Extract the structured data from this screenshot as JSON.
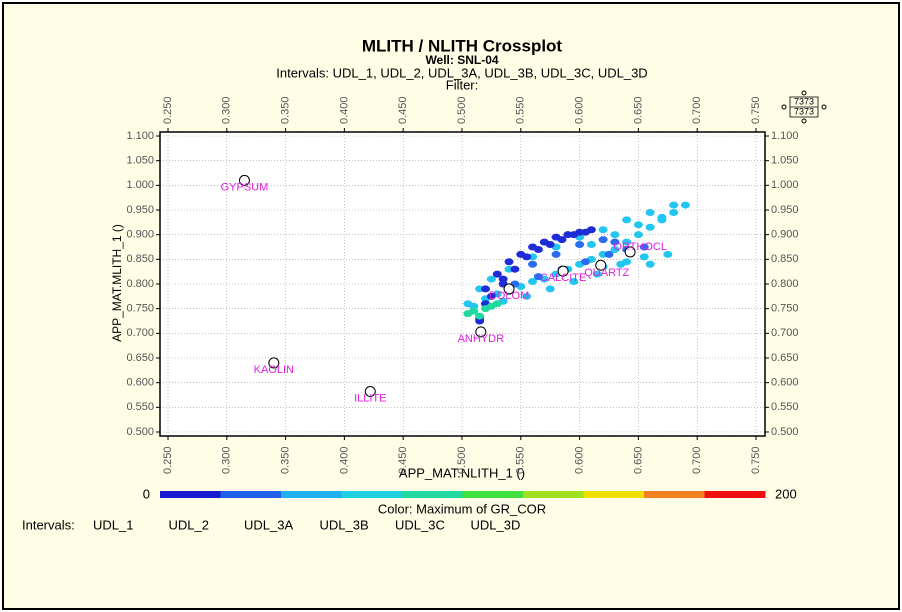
{
  "chart_data": {
    "type": "scatter",
    "title": "MLITH / NLITH Crossplot",
    "subtitle": "Well: SNL-04",
    "intervals_line": "Intervals: UDL_1, UDL_2, UDL_3A, UDL_3B, UDL_3C, UDL_3D",
    "filter": "Filter:",
    "xlabel": "APP_MAT.NLITH_1 ()",
    "ylabel": "APP_MAT.MLITH_1 ()",
    "xlim": [
      0.25,
      0.75
    ],
    "ylim": [
      0.5,
      1.1
    ],
    "xticks": [
      {
        "value": 0.25,
        "label": "0.250"
      },
      {
        "value": 0.3,
        "label": "0.300"
      },
      {
        "value": 0.35,
        "label": "0.350"
      },
      {
        "value": 0.4,
        "label": "0.400"
      },
      {
        "value": 0.45,
        "label": "0.450"
      },
      {
        "value": 0.5,
        "label": "0.500"
      },
      {
        "value": 0.55,
        "label": "0.550"
      },
      {
        "value": 0.6,
        "label": "0.600"
      },
      {
        "value": 0.65,
        "label": "0.650"
      },
      {
        "value": 0.7,
        "label": "0.700"
      },
      {
        "value": 0.75,
        "label": "0.750"
      }
    ],
    "yticks": [
      {
        "value": 0.5,
        "label": "0.500"
      },
      {
        "value": 0.55,
        "label": "0.550"
      },
      {
        "value": 0.6,
        "label": "0.600"
      },
      {
        "value": 0.65,
        "label": "0.650"
      },
      {
        "value": 0.7,
        "label": "0.700"
      },
      {
        "value": 0.75,
        "label": "0.750"
      },
      {
        "value": 0.8,
        "label": "0.800"
      },
      {
        "value": 0.85,
        "label": "0.850"
      },
      {
        "value": 0.9,
        "label": "0.900"
      },
      {
        "value": 0.95,
        "label": "0.950"
      },
      {
        "value": 1.0,
        "label": "1.000"
      },
      {
        "value": 1.05,
        "label": "1.050"
      },
      {
        "value": 1.1,
        "label": "1.100"
      }
    ],
    "grid": true,
    "series": [
      {
        "color": "#22c6f0",
        "x": [
          0.505,
          0.51,
          0.52,
          0.53,
          0.54,
          0.55,
          0.56,
          0.57,
          0.58,
          0.59,
          0.6,
          0.61,
          0.62,
          0.63,
          0.64,
          0.65,
          0.66,
          0.67,
          0.68,
          0.69,
          0.61,
          0.63,
          0.65,
          0.67,
          0.68,
          0.66,
          0.64,
          0.62,
          0.6,
          0.58,
          0.56,
          0.54,
          0.525,
          0.515,
          0.535,
          0.555,
          0.575,
          0.595,
          0.615,
          0.635,
          0.655,
          0.675,
          0.62,
          0.64,
          0.66
        ],
        "values": [
          0.76,
          0.755,
          0.77,
          0.78,
          0.785,
          0.795,
          0.805,
          0.81,
          0.82,
          0.83,
          0.84,
          0.85,
          0.86,
          0.87,
          0.885,
          0.9,
          0.915,
          0.93,
          0.945,
          0.96,
          0.88,
          0.9,
          0.92,
          0.935,
          0.96,
          0.945,
          0.93,
          0.91,
          0.895,
          0.875,
          0.855,
          0.83,
          0.81,
          0.79,
          0.765,
          0.775,
          0.79,
          0.805,
          0.82,
          0.84,
          0.855,
          0.86,
          0.835,
          0.845,
          0.84
        ]
      },
      {
        "color": "#2a6cf0",
        "x": [
          0.545,
          0.565,
          0.585,
          0.605,
          0.625,
          0.64,
          0.655,
          0.6,
          0.62,
          0.63,
          0.58,
          0.56
        ],
        "values": [
          0.8,
          0.815,
          0.83,
          0.845,
          0.86,
          0.87,
          0.875,
          0.88,
          0.89,
          0.885,
          0.86,
          0.84
        ]
      },
      {
        "color": "#1e2bd6",
        "x": [
          0.525,
          0.535,
          0.545,
          0.555,
          0.565,
          0.575,
          0.585,
          0.595,
          0.605,
          0.61,
          0.52,
          0.515,
          0.53,
          0.54,
          0.55,
          0.56,
          0.57,
          0.58,
          0.59,
          0.6,
          0.515,
          0.52,
          0.535
        ],
        "values": [
          0.775,
          0.8,
          0.83,
          0.855,
          0.87,
          0.88,
          0.89,
          0.9,
          0.905,
          0.91,
          0.79,
          0.725,
          0.82,
          0.845,
          0.86,
          0.875,
          0.885,
          0.895,
          0.9,
          0.905,
          0.73,
          0.76,
          0.81
        ]
      },
      {
        "color": "#20d8a0",
        "x": [
          0.505,
          0.51,
          0.52,
          0.53,
          0.515,
          0.525
        ],
        "values": [
          0.74,
          0.745,
          0.75,
          0.76,
          0.735,
          0.755
        ]
      }
    ],
    "minerals": {
      "color": "#e020e0",
      "labels": [
        "GYPSUM",
        "KAOLIN",
        "ILLITE",
        "ANHYDR",
        "DOLOM",
        "CALCITE",
        "QUARTZ",
        "ORTHOCL"
      ],
      "x": [
        0.315,
        0.34,
        0.422,
        0.516,
        0.54,
        0.586,
        0.618,
        0.643
      ],
      "values": [
        1.01,
        0.64,
        0.582,
        0.703,
        0.79,
        0.826,
        0.838,
        0.865
      ]
    },
    "colorbar": {
      "min": 0,
      "max": 200,
      "label": "Color: Maximum of GR_COR",
      "colors": [
        "#1a1ad0",
        "#2060e8",
        "#20b0f0",
        "#20d0e0",
        "#20d8a0",
        "#40e040",
        "#a0e020",
        "#f0e000",
        "#f08020",
        "#f01010"
      ]
    },
    "intervals_legend": {
      "label": "Intervals:",
      "items": [
        "UDL_1",
        "UDL_2",
        "UDL_3A",
        "UDL_3B",
        "UDL_3C",
        "UDL_3D"
      ]
    },
    "symbol_scale": [
      "7373",
      "7373"
    ]
  }
}
